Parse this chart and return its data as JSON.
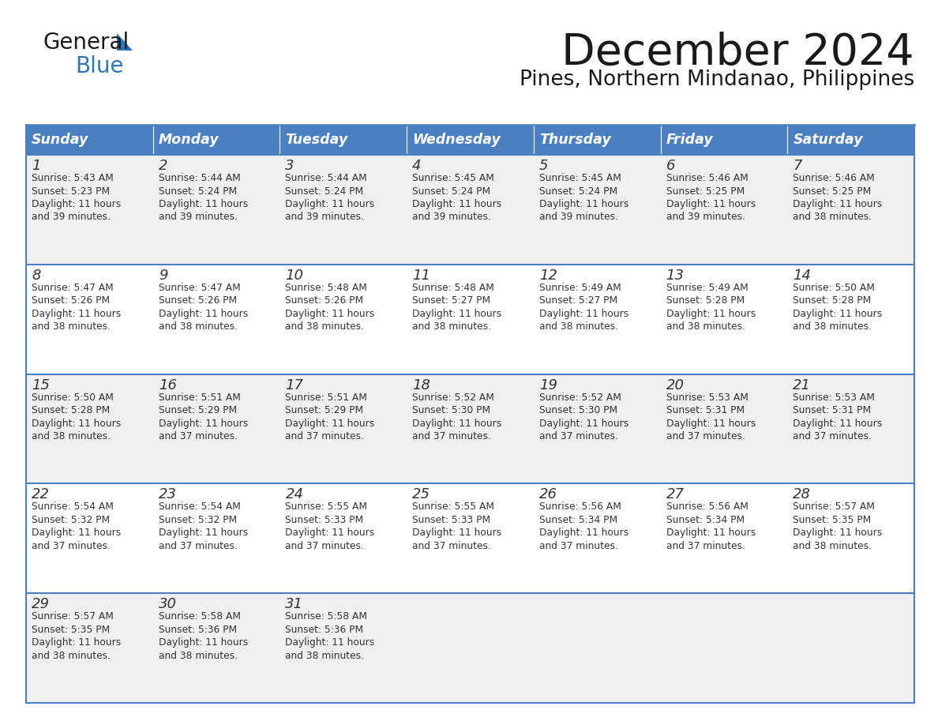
{
  "title": "December 2024",
  "subtitle": "Pines, Northern Mindanao, Philippines",
  "header_bg_color": "#4A7FC1",
  "header_text_color": "#FFFFFF",
  "days_of_week": [
    "Sunday",
    "Monday",
    "Tuesday",
    "Wednesday",
    "Thursday",
    "Friday",
    "Saturday"
  ],
  "cell_bg_light": "#F0F0F0",
  "cell_bg_white": "#FFFFFF",
  "border_color": "#4A7FC1",
  "text_color": "#333333",
  "title_color": "#1a1a1a",
  "logo_black": "#1a1a1a",
  "logo_blue": "#2E75B6",
  "calendar_data": [
    [
      {
        "day": 1,
        "sunrise": "5:43 AM",
        "sunset": "5:23 PM",
        "daylight": "11 hours and 39 minutes"
      },
      {
        "day": 2,
        "sunrise": "5:44 AM",
        "sunset": "5:24 PM",
        "daylight": "11 hours and 39 minutes"
      },
      {
        "day": 3,
        "sunrise": "5:44 AM",
        "sunset": "5:24 PM",
        "daylight": "11 hours and 39 minutes"
      },
      {
        "day": 4,
        "sunrise": "5:45 AM",
        "sunset": "5:24 PM",
        "daylight": "11 hours and 39 minutes"
      },
      {
        "day": 5,
        "sunrise": "5:45 AM",
        "sunset": "5:24 PM",
        "daylight": "11 hours and 39 minutes"
      },
      {
        "day": 6,
        "sunrise": "5:46 AM",
        "sunset": "5:25 PM",
        "daylight": "11 hours and 39 minutes"
      },
      {
        "day": 7,
        "sunrise": "5:46 AM",
        "sunset": "5:25 PM",
        "daylight": "11 hours and 38 minutes"
      }
    ],
    [
      {
        "day": 8,
        "sunrise": "5:47 AM",
        "sunset": "5:26 PM",
        "daylight": "11 hours and 38 minutes"
      },
      {
        "day": 9,
        "sunrise": "5:47 AM",
        "sunset": "5:26 PM",
        "daylight": "11 hours and 38 minutes"
      },
      {
        "day": 10,
        "sunrise": "5:48 AM",
        "sunset": "5:26 PM",
        "daylight": "11 hours and 38 minutes"
      },
      {
        "day": 11,
        "sunrise": "5:48 AM",
        "sunset": "5:27 PM",
        "daylight": "11 hours and 38 minutes"
      },
      {
        "day": 12,
        "sunrise": "5:49 AM",
        "sunset": "5:27 PM",
        "daylight": "11 hours and 38 minutes"
      },
      {
        "day": 13,
        "sunrise": "5:49 AM",
        "sunset": "5:28 PM",
        "daylight": "11 hours and 38 minutes"
      },
      {
        "day": 14,
        "sunrise": "5:50 AM",
        "sunset": "5:28 PM",
        "daylight": "11 hours and 38 minutes"
      }
    ],
    [
      {
        "day": 15,
        "sunrise": "5:50 AM",
        "sunset": "5:28 PM",
        "daylight": "11 hours and 38 minutes"
      },
      {
        "day": 16,
        "sunrise": "5:51 AM",
        "sunset": "5:29 PM",
        "daylight": "11 hours and 37 minutes"
      },
      {
        "day": 17,
        "sunrise": "5:51 AM",
        "sunset": "5:29 PM",
        "daylight": "11 hours and 37 minutes"
      },
      {
        "day": 18,
        "sunrise": "5:52 AM",
        "sunset": "5:30 PM",
        "daylight": "11 hours and 37 minutes"
      },
      {
        "day": 19,
        "sunrise": "5:52 AM",
        "sunset": "5:30 PM",
        "daylight": "11 hours and 37 minutes"
      },
      {
        "day": 20,
        "sunrise": "5:53 AM",
        "sunset": "5:31 PM",
        "daylight": "11 hours and 37 minutes"
      },
      {
        "day": 21,
        "sunrise": "5:53 AM",
        "sunset": "5:31 PM",
        "daylight": "11 hours and 37 minutes"
      }
    ],
    [
      {
        "day": 22,
        "sunrise": "5:54 AM",
        "sunset": "5:32 PM",
        "daylight": "11 hours and 37 minutes"
      },
      {
        "day": 23,
        "sunrise": "5:54 AM",
        "sunset": "5:32 PM",
        "daylight": "11 hours and 37 minutes"
      },
      {
        "day": 24,
        "sunrise": "5:55 AM",
        "sunset": "5:33 PM",
        "daylight": "11 hours and 37 minutes"
      },
      {
        "day": 25,
        "sunrise": "5:55 AM",
        "sunset": "5:33 PM",
        "daylight": "11 hours and 37 minutes"
      },
      {
        "day": 26,
        "sunrise": "5:56 AM",
        "sunset": "5:34 PM",
        "daylight": "11 hours and 37 minutes"
      },
      {
        "day": 27,
        "sunrise": "5:56 AM",
        "sunset": "5:34 PM",
        "daylight": "11 hours and 37 minutes"
      },
      {
        "day": 28,
        "sunrise": "5:57 AM",
        "sunset": "5:35 PM",
        "daylight": "11 hours and 38 minutes"
      }
    ],
    [
      {
        "day": 29,
        "sunrise": "5:57 AM",
        "sunset": "5:35 PM",
        "daylight": "11 hours and 38 minutes"
      },
      {
        "day": 30,
        "sunrise": "5:58 AM",
        "sunset": "5:36 PM",
        "daylight": "11 hours and 38 minutes"
      },
      {
        "day": 31,
        "sunrise": "5:58 AM",
        "sunset": "5:36 PM",
        "daylight": "11 hours and 38 minutes"
      },
      null,
      null,
      null,
      null
    ]
  ]
}
